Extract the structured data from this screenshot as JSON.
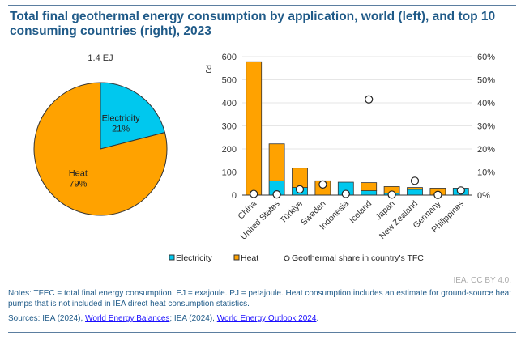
{
  "title": "Total final geothermal energy consumption by application, world (left), and top 10 consuming countries (right), 2023",
  "credit": "IEA. CC BY 4.0.",
  "notes": "Notes: TFEC = total final energy consumption. EJ = exajoule. PJ = petajoule. Heat consumption includes an estimate for ground-source heat pumps that is not included in IEA direct heat consumption statistics.",
  "sources": {
    "prefix": "Sources: IEA (2024), ",
    "link1": "World Energy Balances",
    "mid": "; IEA (2024), ",
    "link2": "World Energy Outlook 2024",
    "suffix": "."
  },
  "colors": {
    "electricity": "#00c8ee",
    "heat": "#ffa200"
  },
  "chart_data": [
    {
      "type": "pie",
      "title": "1.4 EJ",
      "slices": [
        {
          "label": "Electricity",
          "value": 21,
          "text": "21%"
        },
        {
          "label": "Heat",
          "value": 79,
          "text": "79%"
        }
      ]
    },
    {
      "type": "bar",
      "stacked": true,
      "ylabel": "PJ",
      "ylim": [
        0,
        600
      ],
      "yticks": [
        "0",
        "100",
        "200",
        "300",
        "400",
        "500",
        "600"
      ],
      "y2lim": [
        0,
        60
      ],
      "y2ticks": [
        "0%",
        "10%",
        "20%",
        "30%",
        "40%",
        "50%",
        "60%"
      ],
      "categories": [
        "China",
        "United States",
        "Türkiye",
        "Sweden",
        "Indonesia",
        "Iceland",
        "Japan",
        "New Zealand",
        "Germany",
        "Philippines"
      ],
      "series": [
        {
          "name": "Electricity",
          "values": [
            0,
            62,
            33,
            0,
            56,
            19,
            8,
            25,
            0,
            30
          ]
        },
        {
          "name": "Heat",
          "values": [
            578,
            160,
            84,
            62,
            0,
            35,
            29,
            8,
            30,
            0
          ]
        }
      ],
      "scatter": {
        "name": "Geothermal share in country's TFC",
        "values": [
          0.5,
          0.3,
          2.5,
          4.6,
          0.5,
          41.5,
          0.2,
          6.2,
          0.1,
          2.0
        ]
      },
      "grid": true,
      "legend": "bottom"
    }
  ]
}
